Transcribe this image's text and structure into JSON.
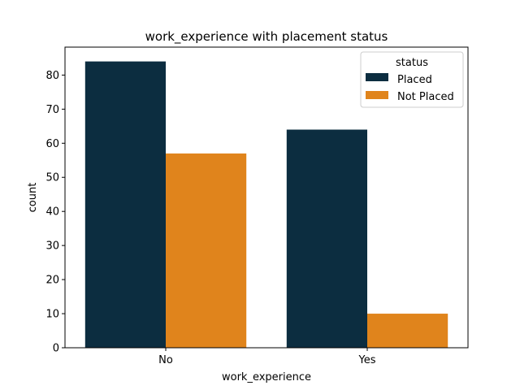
{
  "chart_data": {
    "type": "bar",
    "title": "work_experience with placement status",
    "xlabel": "work_experience",
    "ylabel": "count",
    "categories": [
      "No",
      "Yes"
    ],
    "series": [
      {
        "name": "Placed",
        "values": [
          84,
          64
        ],
        "color": "#0c2d40"
      },
      {
        "name": "Not Placed",
        "values": [
          57,
          10
        ],
        "color": "#e0841c"
      }
    ],
    "ylim": [
      0,
      88.2
    ],
    "yticks": [
      0,
      10,
      20,
      30,
      40,
      50,
      60,
      70,
      80
    ],
    "legend": {
      "title": "status",
      "placement": "top-right"
    },
    "grid": false
  }
}
